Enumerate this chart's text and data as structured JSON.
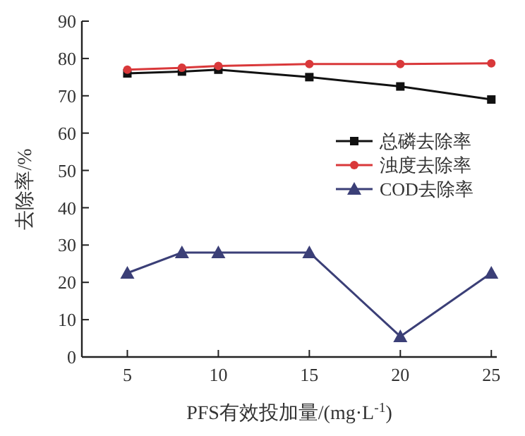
{
  "chart_data": {
    "type": "line",
    "xlabel": "PFS有效投加量/(mg·L$^{-1}$)",
    "ylabel": "去除率/%",
    "x": [
      5,
      8,
      10,
      15,
      20,
      25
    ],
    "series": [
      {
        "name": "总磷去除率",
        "color": "#111111",
        "marker": "square",
        "values": [
          76,
          76.5,
          77,
          75,
          72.5,
          69
        ]
      },
      {
        "name": "浊度去除率",
        "color": "#d9383a",
        "marker": "circle",
        "values": [
          77,
          77.5,
          78,
          78.5,
          78.5,
          78.7
        ]
      },
      {
        "name": "COD去除率",
        "color": "#3b3f77",
        "marker": "triangle",
        "values": [
          22.5,
          28,
          28,
          28,
          5.5,
          22.5
        ]
      }
    ],
    "xlim": [
      2.5,
      25.3
    ],
    "xticks": [
      5,
      10,
      15,
      20,
      25
    ],
    "ylim": [
      0,
      90
    ],
    "yticks": [
      0,
      10,
      20,
      30,
      40,
      50,
      60,
      70,
      80,
      90
    ],
    "legend": "right",
    "line_style": "solid",
    "grid": false
  }
}
